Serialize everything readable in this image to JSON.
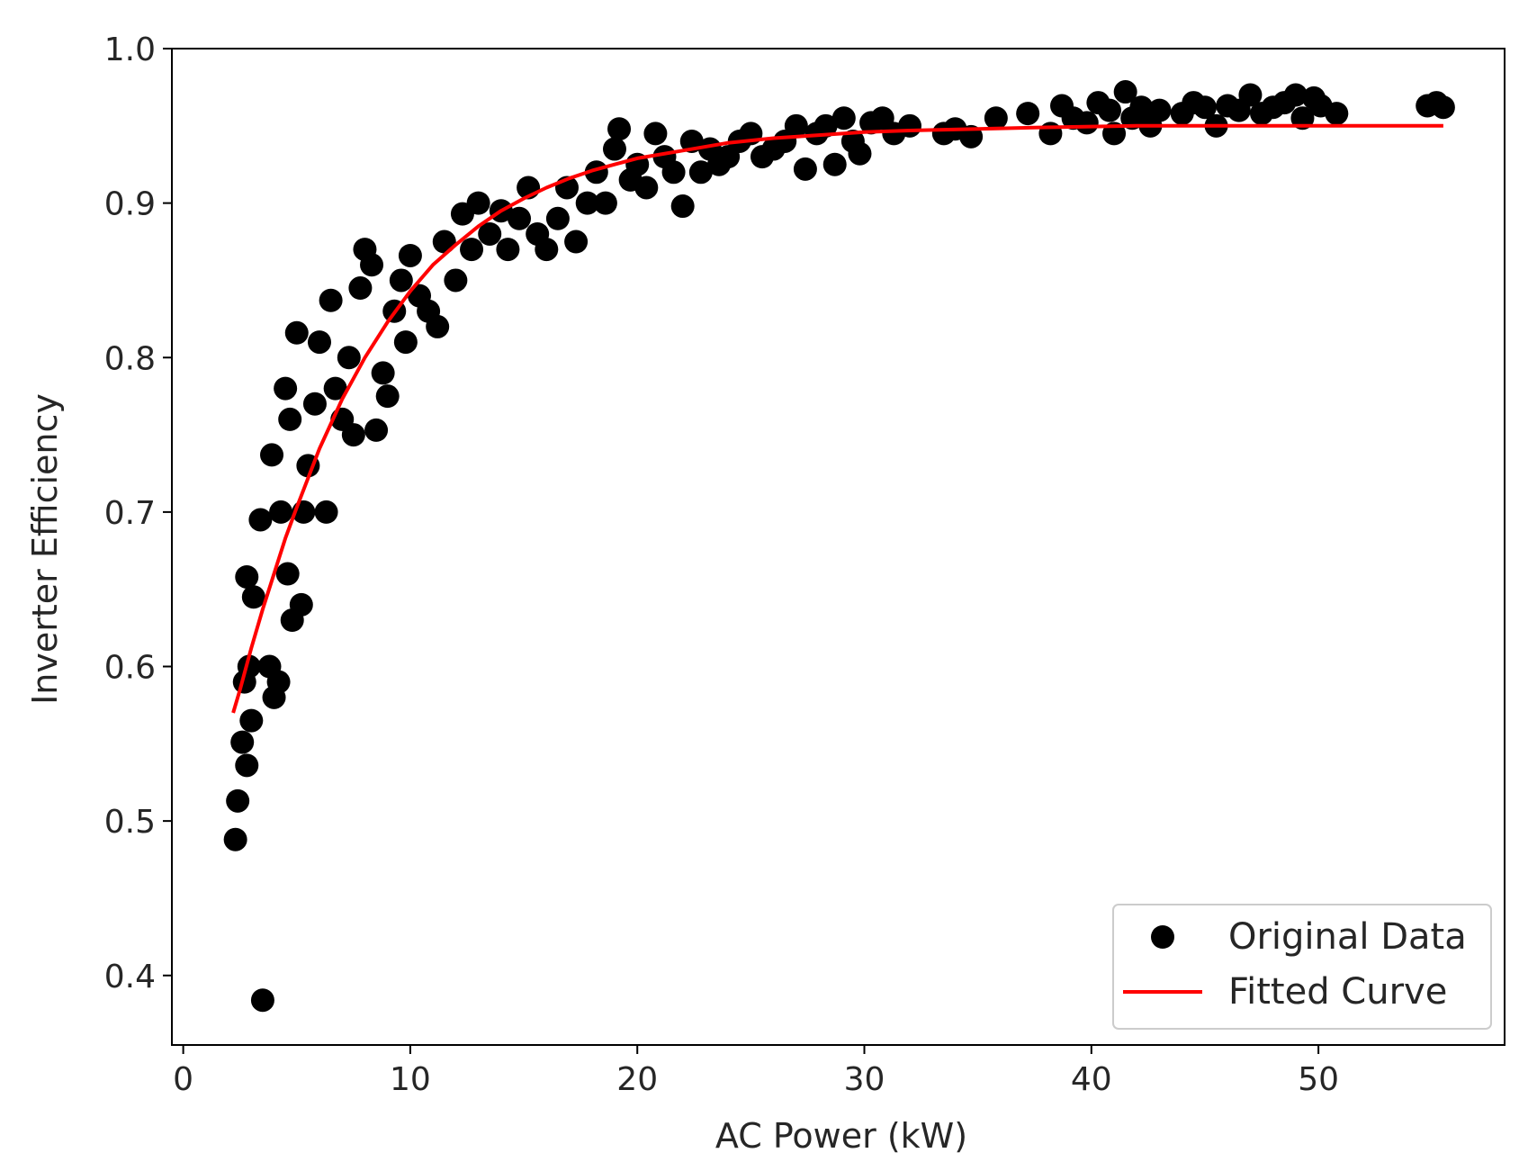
{
  "chart_data": {
    "type": "scatter",
    "title": "",
    "xlabel": "AC Power (kW)",
    "ylabel": "Inverter Efficiency",
    "xlim": [
      -0.5,
      58.2
    ],
    "ylim": [
      0.355,
      1.0
    ],
    "xticks": [
      0,
      10,
      20,
      30,
      40,
      50
    ],
    "yticks": [
      0.4,
      0.5,
      0.6,
      0.7,
      0.8,
      0.9,
      1.0
    ],
    "xtick_labels": [
      "0",
      "10",
      "20",
      "30",
      "40",
      "50"
    ],
    "ytick_labels": [
      "0.4",
      "0.5",
      "0.6",
      "0.7",
      "0.8",
      "0.9",
      "1.0"
    ],
    "grid": false,
    "legend": {
      "position": "lower-right",
      "entries": [
        {
          "label": "Original Data",
          "marker": "circle",
          "color": "#000000"
        },
        {
          "label": "Fitted Curve",
          "marker": "line",
          "color": "#ff0000"
        }
      ]
    },
    "series": [
      {
        "name": "Original Data",
        "kind": "scatter",
        "color": "#000000",
        "points": [
          [
            2.3,
            0.488
          ],
          [
            2.4,
            0.513
          ],
          [
            3.5,
            0.384
          ],
          [
            2.6,
            0.551
          ],
          [
            2.8,
            0.536
          ],
          [
            3.0,
            0.565
          ],
          [
            2.7,
            0.59
          ],
          [
            2.9,
            0.6
          ],
          [
            3.1,
            0.645
          ],
          [
            2.8,
            0.658
          ],
          [
            3.4,
            0.695
          ],
          [
            3.8,
            0.6
          ],
          [
            4.0,
            0.58
          ],
          [
            4.2,
            0.59
          ],
          [
            3.9,
            0.737
          ],
          [
            4.3,
            0.7
          ],
          [
            4.5,
            0.78
          ],
          [
            4.7,
            0.76
          ],
          [
            4.8,
            0.63
          ],
          [
            4.6,
            0.66
          ],
          [
            5.0,
            0.816
          ],
          [
            5.2,
            0.64
          ],
          [
            5.3,
            0.7
          ],
          [
            5.5,
            0.73
          ],
          [
            5.8,
            0.77
          ],
          [
            6.0,
            0.81
          ],
          [
            6.3,
            0.7
          ],
          [
            6.5,
            0.837
          ],
          [
            6.7,
            0.78
          ],
          [
            7.0,
            0.76
          ],
          [
            7.3,
            0.8
          ],
          [
            7.5,
            0.75
          ],
          [
            7.8,
            0.845
          ],
          [
            8.0,
            0.87
          ],
          [
            8.3,
            0.86
          ],
          [
            8.5,
            0.753
          ],
          [
            8.8,
            0.79
          ],
          [
            9.0,
            0.775
          ],
          [
            9.3,
            0.83
          ],
          [
            9.6,
            0.85
          ],
          [
            9.8,
            0.81
          ],
          [
            10.0,
            0.866
          ],
          [
            10.4,
            0.84
          ],
          [
            10.8,
            0.83
          ],
          [
            11.2,
            0.82
          ],
          [
            11.5,
            0.875
          ],
          [
            12.0,
            0.85
          ],
          [
            12.3,
            0.893
          ],
          [
            12.7,
            0.87
          ],
          [
            13.0,
            0.9
          ],
          [
            13.5,
            0.88
          ],
          [
            14.0,
            0.895
          ],
          [
            14.3,
            0.87
          ],
          [
            14.8,
            0.89
          ],
          [
            15.2,
            0.91
          ],
          [
            15.6,
            0.88
          ],
          [
            16.0,
            0.87
          ],
          [
            16.5,
            0.89
          ],
          [
            16.9,
            0.91
          ],
          [
            17.3,
            0.875
          ],
          [
            17.8,
            0.9
          ],
          [
            18.2,
            0.92
          ],
          [
            18.6,
            0.9
          ],
          [
            19.0,
            0.935
          ],
          [
            19.2,
            0.948
          ],
          [
            19.7,
            0.915
          ],
          [
            20.0,
            0.925
          ],
          [
            20.4,
            0.91
          ],
          [
            20.8,
            0.945
          ],
          [
            21.2,
            0.93
          ],
          [
            21.6,
            0.92
          ],
          [
            22.0,
            0.898
          ],
          [
            22.4,
            0.94
          ],
          [
            22.8,
            0.92
          ],
          [
            23.2,
            0.935
          ],
          [
            23.6,
            0.925
          ],
          [
            24.0,
            0.93
          ],
          [
            24.5,
            0.94
          ],
          [
            25.0,
            0.945
          ],
          [
            25.5,
            0.93
          ],
          [
            26.0,
            0.935
          ],
          [
            26.5,
            0.94
          ],
          [
            27.0,
            0.95
          ],
          [
            27.4,
            0.922
          ],
          [
            27.9,
            0.945
          ],
          [
            28.3,
            0.95
          ],
          [
            28.7,
            0.925
          ],
          [
            29.1,
            0.955
          ],
          [
            29.5,
            0.94
          ],
          [
            29.8,
            0.932
          ],
          [
            30.3,
            0.952
          ],
          [
            30.8,
            0.955
          ],
          [
            31.3,
            0.945
          ],
          [
            32.0,
            0.95
          ],
          [
            33.5,
            0.945
          ],
          [
            34.0,
            0.948
          ],
          [
            34.7,
            0.943
          ],
          [
            35.8,
            0.955
          ],
          [
            37.2,
            0.958
          ],
          [
            38.2,
            0.945
          ],
          [
            38.7,
            0.963
          ],
          [
            39.2,
            0.955
          ],
          [
            39.8,
            0.952
          ],
          [
            40.3,
            0.965
          ],
          [
            40.8,
            0.96
          ],
          [
            41.0,
            0.945
          ],
          [
            41.5,
            0.972
          ],
          [
            41.8,
            0.955
          ],
          [
            42.2,
            0.962
          ],
          [
            42.6,
            0.95
          ],
          [
            43.0,
            0.96
          ],
          [
            44.0,
            0.958
          ],
          [
            44.5,
            0.965
          ],
          [
            45.0,
            0.962
          ],
          [
            45.5,
            0.95
          ],
          [
            46.0,
            0.963
          ],
          [
            46.5,
            0.96
          ],
          [
            47.0,
            0.97
          ],
          [
            47.5,
            0.958
          ],
          [
            48.0,
            0.962
          ],
          [
            48.5,
            0.965
          ],
          [
            49.0,
            0.97
          ],
          [
            49.3,
            0.955
          ],
          [
            49.8,
            0.968
          ],
          [
            50.1,
            0.963
          ],
          [
            50.8,
            0.958
          ],
          [
            54.8,
            0.963
          ],
          [
            55.2,
            0.965
          ],
          [
            55.5,
            0.962
          ]
        ]
      },
      {
        "name": "Fitted Curve",
        "kind": "line",
        "color": "#ff0000",
        "points": [
          [
            2.2,
            0.57
          ],
          [
            2.5,
            0.585
          ],
          [
            3.0,
            0.612
          ],
          [
            3.5,
            0.637
          ],
          [
            4.0,
            0.66
          ],
          [
            4.5,
            0.683
          ],
          [
            5.0,
            0.703
          ],
          [
            6.0,
            0.741
          ],
          [
            7.0,
            0.773
          ],
          [
            8.0,
            0.8
          ],
          [
            9.0,
            0.823
          ],
          [
            10.0,
            0.843
          ],
          [
            11.0,
            0.86
          ],
          [
            12.0,
            0.873
          ],
          [
            13.0,
            0.885
          ],
          [
            14.0,
            0.895
          ],
          [
            15.0,
            0.903
          ],
          [
            16.0,
            0.91
          ],
          [
            17.0,
            0.916
          ],
          [
            18.0,
            0.921
          ],
          [
            19.0,
            0.925
          ],
          [
            20.0,
            0.929
          ],
          [
            22.0,
            0.934
          ],
          [
            24.0,
            0.939
          ],
          [
            26.0,
            0.942
          ],
          [
            28.0,
            0.944
          ],
          [
            30.0,
            0.946
          ],
          [
            32.0,
            0.947
          ],
          [
            35.0,
            0.948
          ],
          [
            38.0,
            0.949
          ],
          [
            42.0,
            0.95
          ],
          [
            46.0,
            0.95
          ],
          [
            50.0,
            0.95
          ],
          [
            55.5,
            0.95
          ]
        ]
      }
    ]
  }
}
